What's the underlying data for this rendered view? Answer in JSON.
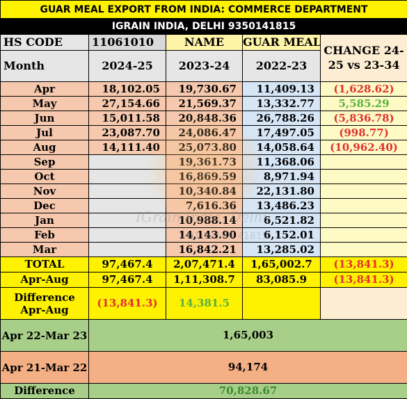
{
  "title": "GUAR MEAL EXPORT FROM INDIA: COMMERCE DEPARTMENT",
  "subtitle": "IGRAIN INDIA, DELHI 9350141815",
  "header": {
    "hs_code_label": "HS CODE",
    "hs_code_value": "11061010",
    "name_label": "NAME",
    "name_value": "GUAR MEAL",
    "change_label": "CHANGE 24-25 vs 23-34",
    "month_label": "Month",
    "col1": "2024-25",
    "col2": "2023-24",
    "col3": "2022-23"
  },
  "rows": [
    {
      "month": "Apr",
      "v1": "18,102.05",
      "v2": "19,730.67",
      "v3": "11,409.13",
      "chg": "(1,628.62)",
      "chg_color": "red"
    },
    {
      "month": "May",
      "v1": "27,154.66",
      "v2": "21,569.37",
      "v3": "13,332.77",
      "chg": "5,585.29",
      "chg_color": "green"
    },
    {
      "month": "Jun",
      "v1": "15,011.58",
      "v2": "20,848.36",
      "v3": "26,788.26",
      "chg": "(5,836.78)",
      "chg_color": "red"
    },
    {
      "month": "Jul",
      "v1": "23,087.70",
      "v2": "24,086.47",
      "v3": "17,497.05",
      "chg": "(998.77)",
      "chg_color": "red"
    },
    {
      "month": "Aug",
      "v1": "14,111.40",
      "v2": "25,073.80",
      "v3": "14,058.64",
      "chg": "(10,962.40)",
      "chg_color": "red"
    },
    {
      "month": "Sep",
      "v1": "",
      "v2": "19,361.73",
      "v3": "11,368.06",
      "chg": "",
      "chg_color": ""
    },
    {
      "month": "Oct",
      "v1": "",
      "v2": "16,869.59",
      "v3": "8,971.94",
      "chg": "",
      "chg_color": ""
    },
    {
      "month": "Nov",
      "v1": "",
      "v2": "10,340.84",
      "v3": "22,131.80",
      "chg": "",
      "chg_color": ""
    },
    {
      "month": "Dec",
      "v1": "",
      "v2": "7,616.36",
      "v3": "13,486.23",
      "chg": "",
      "chg_color": ""
    },
    {
      "month": "Jan",
      "v1": "",
      "v2": "10,988.14",
      "v3": "6,521.82",
      "chg": "",
      "chg_color": ""
    },
    {
      "month": "Feb",
      "v1": "",
      "v2": "14,143.90",
      "v3": "6,152.01",
      "chg": "",
      "chg_color": ""
    },
    {
      "month": "Mar",
      "v1": "",
      "v2": "16,842.21",
      "v3": "13,285.02",
      "chg": "",
      "chg_color": ""
    }
  ],
  "total": {
    "label": "TOTAL",
    "v1": "97,467.4",
    "v2": "2,07,471.4",
    "v3": "1,65,002.7",
    "chg": "(13,841.3)"
  },
  "apr_aug": {
    "label": "Apr-Aug",
    "v1": "97,467.4",
    "v2": "1,11,308.7",
    "v3": "83,085.9",
    "chg": "(13,841.3)"
  },
  "difference_apr_aug": {
    "label": "Difference Apr-Aug",
    "v1": "(13,841.3)",
    "v2": "14,381.5"
  },
  "apr22_mar23": {
    "label": "Apr 22-Mar 23",
    "value": "1,65,003"
  },
  "apr21_mar22": {
    "label": "Apr 21-Mar 22",
    "value": "94,174"
  },
  "difference": {
    "label": "Difference",
    "value": "70,828.67"
  },
  "watermark": {
    "line1": "IGrain India, Delhi",
    "line2": "+91 93501 41815"
  }
}
